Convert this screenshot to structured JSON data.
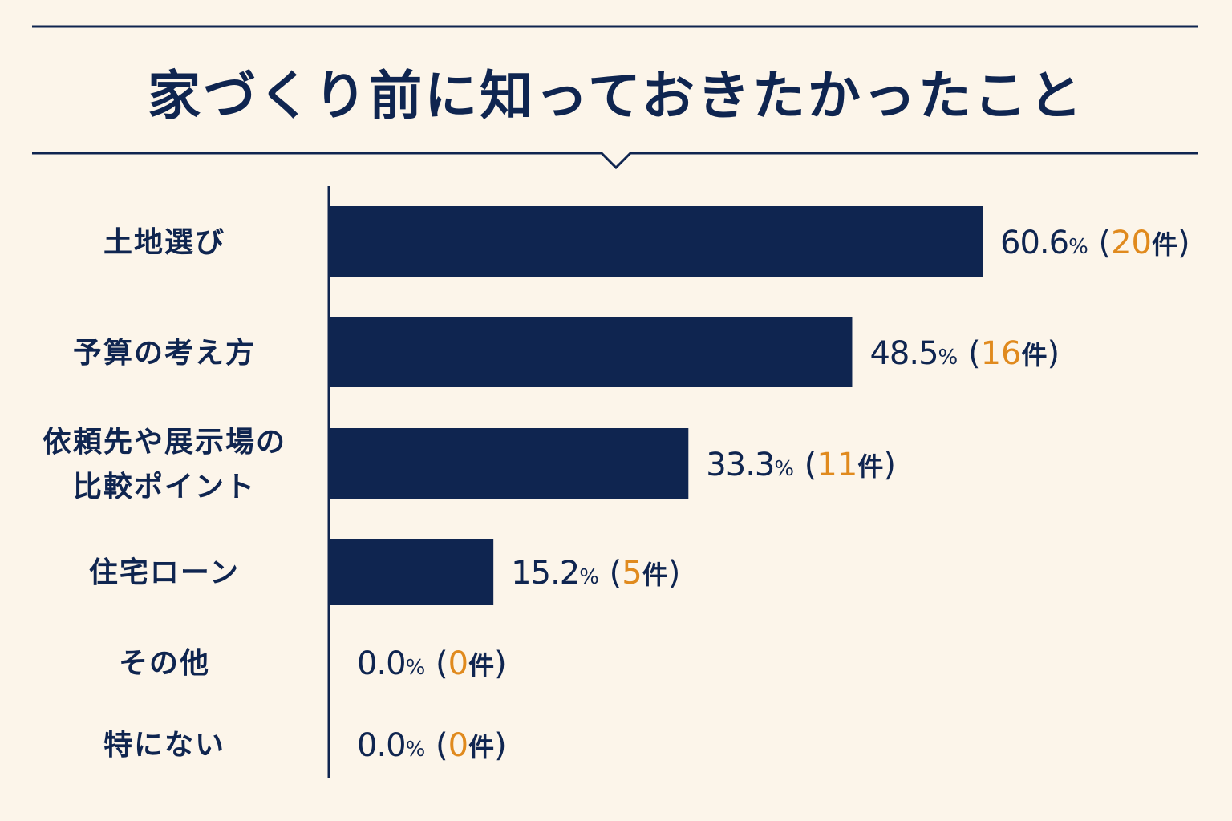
{
  "chart_data": {
    "type": "bar",
    "orientation": "horizontal",
    "title": "家づくり前に知っておきたかったこと",
    "categories": [
      [
        "土地選び"
      ],
      [
        "予算の考え方"
      ],
      [
        "依頼先や展示場の",
        "比較ポイント"
      ],
      [
        "住宅ローン"
      ],
      [
        "その他"
      ],
      [
        "特にない"
      ]
    ],
    "values": [
      60.6,
      48.5,
      33.3,
      15.2,
      0.0,
      0.0
    ],
    "counts": [
      20,
      16,
      11,
      5,
      0,
      0
    ],
    "value_labels": [
      "60.6",
      "48.5",
      "33.3",
      "15.2",
      "0.0",
      "0.0"
    ],
    "percent_symbol": "%",
    "count_unit": "件",
    "open_paren": "(",
    "close_paren": ")",
    "xlim": [
      0,
      60.6
    ],
    "grid": false,
    "legend": "none"
  },
  "colors": {
    "bar": "#0f2550",
    "text": "#0f2550",
    "count": "#e08a1e",
    "background": "#fcf5ea"
  }
}
